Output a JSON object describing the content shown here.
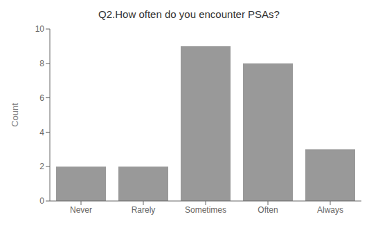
{
  "chart_data": {
    "type": "bar",
    "title": "Q2.How often do you encounter PSAs?",
    "ylabel": "Count",
    "categories": [
      "Never",
      "Rarely",
      "Sometimes",
      "Often",
      "Always"
    ],
    "values": [
      2,
      2,
      9,
      8,
      3
    ],
    "color": "#999999",
    "ylim": [
      0,
      10
    ],
    "yticks": [
      0,
      2,
      4,
      6,
      8,
      10
    ],
    "grid": false
  }
}
